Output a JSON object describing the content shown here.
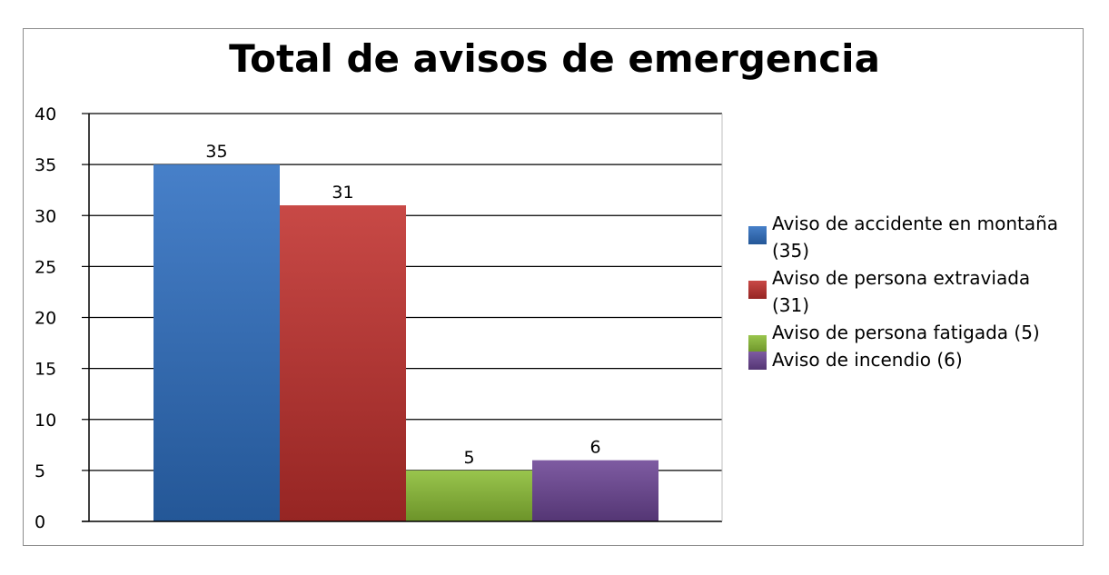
{
  "chart_data": {
    "type": "bar",
    "title": "Total de avisos de emergencia",
    "xlabel": "",
    "ylabel": "",
    "ylim": [
      0,
      40
    ],
    "yticks": [
      0,
      5,
      10,
      15,
      20,
      25,
      30,
      35,
      40
    ],
    "grid": true,
    "legend_position": "right",
    "series": [
      {
        "name": "Aviso de accidente en montaña (35)",
        "value": 35,
        "label": "35",
        "color": "#2e6fc2"
      },
      {
        "name": "Aviso de persona extraviada (31)",
        "value": 31,
        "label": "31",
        "color": "#c0302d"
      },
      {
        "name": "Aviso de persona fatigada (5)",
        "value": 5,
        "label": "5",
        "color": "#8bbd35"
      },
      {
        "name": "Aviso de incendio (6)",
        "value": 6,
        "label": "6",
        "color": "#6c4595"
      }
    ]
  }
}
